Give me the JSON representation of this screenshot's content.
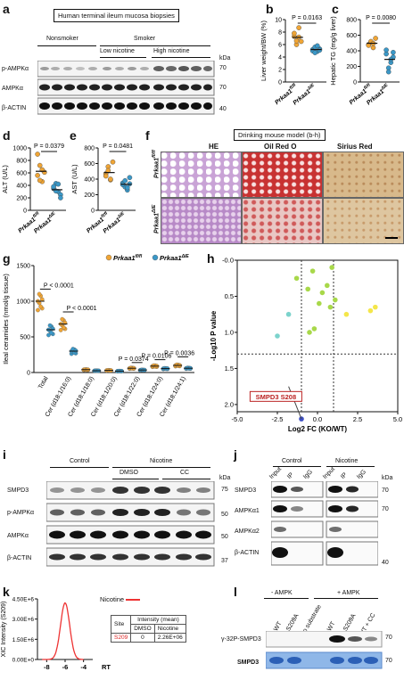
{
  "panels": {
    "a": "a",
    "b": "b",
    "c": "c",
    "d": "d",
    "e": "e",
    "f": "f",
    "g": "g",
    "h": "h",
    "i": "i",
    "j": "j",
    "k": "k",
    "l": "l"
  },
  "a": {
    "box_title": "Human terminal ileum mucosa biopsies",
    "groups": {
      "nonsmoker": "Nonsmoker",
      "smoker": "Smoker",
      "low": "Low nicotine",
      "high": "High nicotine"
    },
    "rows": [
      "p-AMPKα",
      "AMPKα",
      "β-ACTIN"
    ],
    "kda_label": "kDa",
    "kda": [
      "70",
      "70",
      "40"
    ]
  },
  "geno": {
    "fl": "Prkaa1",
    "fl_sup": "fl/fl",
    "de": "Prkaa1",
    "de_sup": "ΔIE"
  },
  "b": {
    "ylabel": "Liver weight/BW (%)",
    "p": "P = 0.0163",
    "yticks": [
      "0",
      "2",
      "4",
      "6",
      "8",
      "10"
    ],
    "chart_data": {
      "type": "scatter",
      "series": [
        {
          "values": [
            7.3,
            6.0,
            8.7,
            6.5,
            7.8,
            6.6,
            7.2
          ]
        },
        {
          "values": [
            5.2,
            5.6,
            4.9,
            5.3,
            5.0,
            4.7,
            5.8,
            5.1
          ]
        }
      ],
      "ylim": [
        0,
        10
      ]
    }
  },
  "c": {
    "ylabel": "Hepatic TG (mg/g liver)",
    "p": "P = 0.0080",
    "yticks": [
      "0",
      "200",
      "400",
      "600",
      "800"
    ],
    "chart_data": {
      "type": "scatter",
      "series": [
        {
          "values": [
            480,
            510,
            440,
            560,
            470,
            520,
            495
          ]
        },
        {
          "values": [
            360,
            180,
            250,
            320,
            410,
            130,
            290,
            380
          ]
        }
      ],
      "ylim": [
        0,
        800
      ]
    }
  },
  "d": {
    "ylabel": "ALT (U/L)",
    "p": "P = 0.0379",
    "yticks": [
      "0",
      "200",
      "400",
      "600",
      "800",
      "1000"
    ],
    "chart_data": {
      "type": "scatter",
      "series": [
        {
          "values": [
            560,
            720,
            460,
            610,
            900,
            480,
            650
          ]
        },
        {
          "values": [
            350,
            430,
            300,
            250,
            380,
            310,
            420,
            200
          ]
        }
      ],
      "ylim": [
        0,
        1000
      ]
    }
  },
  "e": {
    "ylabel": "AST (U/L)",
    "p": "P = 0.0481",
    "yticks": [
      "0",
      "200",
      "400",
      "600",
      "800"
    ],
    "chart_data": {
      "type": "scatter",
      "series": [
        {
          "values": [
            470,
            560,
            390,
            620,
            440,
            510,
            400
          ]
        },
        {
          "values": [
            350,
            300,
            260,
            420,
            330,
            380,
            290,
            340
          ]
        }
      ],
      "ylim": [
        0,
        800
      ]
    }
  },
  "f": {
    "box_title": "Drinking mouse model (b-h)",
    "cols": [
      "HE",
      "Oil Red O",
      "Sirius Red"
    ]
  },
  "g": {
    "ylabel": "Ileal ceramides (nmol/g tissue)",
    "yticks": [
      "0",
      "500",
      "1000",
      "1500"
    ],
    "legend": [
      "Prkaa1",
      "Prkaa1"
    ],
    "legend_sup": [
      "fl/fl",
      "ΔIE"
    ],
    "pvals": [
      "P < 0.0001",
      "P < 0.0001",
      "P = 0.0374",
      "P = 0.0106",
      "P = 0.0036"
    ],
    "chart_data": {
      "type": "scatter",
      "categories": [
        "Total",
        "Cer (d18:1/16:0)",
        "Cer (d18:1/18:0)",
        "Cer (d18:1/20:0)",
        "Cer (d18:1/22:0)",
        "Cer (d18:1/24:0)",
        "Cer (d18:1/24:1)"
      ],
      "series": [
        {
          "values": [
            1000,
            680,
            40,
            30,
            60,
            90,
            100
          ]
        },
        {
          "values": [
            600,
            300,
            25,
            20,
            35,
            55,
            60
          ]
        }
      ],
      "ylim": [
        0,
        1500
      ]
    }
  },
  "h": {
    "ylabel": "-Log10 P value",
    "xlabel": "Log2 FC (KO/WT)",
    "xticks": [
      "-5.0",
      "-2.5",
      "0.0",
      "2.5",
      "5.0"
    ],
    "yticks": [
      "-0.0",
      "0.5",
      "1.0",
      "1.5",
      "2.0"
    ],
    "callout": "SMPD3 S208",
    "chart_data": {
      "type": "scatter",
      "series": [
        {
          "name": "",
          "x": [
            -1.0,
            -2.5,
            -1.8,
            -0.5,
            -0.2,
            0.3,
            -1.3,
            0.6,
            -0.6,
            0.1,
            0.8,
            -0.3,
            1.1,
            0.9,
            3.3,
            3.6,
            1.8
          ],
          "y": [
            2.2,
            1.05,
            0.75,
            1.0,
            0.95,
            0.45,
            0.25,
            0.35,
            0.4,
            0.6,
            0.65,
            0.15,
            0.55,
            0.1,
            0.7,
            0.65,
            0.75
          ]
        }
      ],
      "xlim": [
        -5,
        5
      ],
      "ylim": [
        0,
        2.1
      ]
    }
  },
  "i": {
    "groups": {
      "control": "Control",
      "nicotine": "Nicotine",
      "dmso": "DMSO",
      "cc": "CC"
    },
    "rows": [
      "SMPD3",
      "p-AMPKα",
      "AMPKα",
      "β-ACTIN"
    ],
    "kda_label": "kDa",
    "kda": [
      "75",
      "50",
      "50",
      "37"
    ]
  },
  "j": {
    "groups": {
      "control": "Control",
      "nicotine": "Nicotine"
    },
    "lanes": [
      "Input",
      "IP",
      "IgG",
      "Input",
      "IP",
      "IgG"
    ],
    "rows": [
      "SMPD3",
      "AMPKα1",
      "AMPKα2",
      "β-ACTIN"
    ],
    "kda_label": "kDa",
    "kda": [
      "70",
      "70",
      "40"
    ]
  },
  "k": {
    "ylabel": "XIC Intensity (S209)",
    "xlabel": "RT",
    "legend": "Nicotine",
    "yticks": [
      "4.50E+6",
      "3.00E+6",
      "1.50E+6",
      "0.00E+0"
    ],
    "xticks": [
      "-8",
      "-6",
      "-4"
    ],
    "table": {
      "h_site": "Site",
      "h_int": "Intensity (mean)",
      "h_dmso": "DMSO",
      "h_nic": "Nicotine",
      "site": "S209",
      "dmso": "0",
      "nic": "2.26E+06"
    }
  },
  "l": {
    "groups": {
      "minus": "- AMPK",
      "plus": "+ AMPK"
    },
    "lanes": [
      "WT",
      "S209A",
      "No substrate",
      "WT",
      "S209A",
      "WT + CC"
    ],
    "rows": [
      "γ-32P-SMPD3",
      "SMPD3"
    ],
    "kda": [
      "70",
      "70"
    ]
  },
  "colors": {
    "fl": "#f0a535",
    "de": "#3a98c8",
    "volcano_blue": "#3d4fc4",
    "volcano_teal": "#7cd3cc",
    "volcano_green": "#a8d84a",
    "volcano_yellow": "#f4e64a"
  }
}
